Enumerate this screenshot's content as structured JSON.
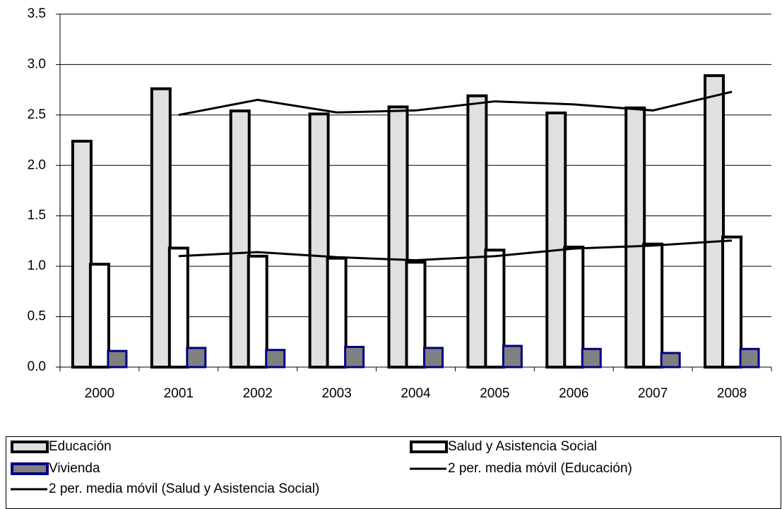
{
  "chart_data": {
    "type": "bar",
    "categories": [
      "2000",
      "2001",
      "2002",
      "2003",
      "2004",
      "2005",
      "2006",
      "2007",
      "2008"
    ],
    "series": [
      {
        "name": "Educación",
        "type": "bar",
        "color": "#e0e0e0",
        "edge": "#000000",
        "values": [
          2.24,
          2.76,
          2.54,
          2.51,
          2.58,
          2.69,
          2.52,
          2.57,
          2.89
        ]
      },
      {
        "name": "Salud y Asistencia Social",
        "type": "bar",
        "color": "#ffffff",
        "edge": "#000000",
        "values": [
          1.02,
          1.18,
          1.1,
          1.08,
          1.04,
          1.16,
          1.19,
          1.22,
          1.29
        ]
      },
      {
        "name": "Vivienda",
        "type": "bar",
        "color": "#808080",
        "edge": "#000080",
        "values": [
          0.16,
          0.19,
          0.17,
          0.2,
          0.19,
          0.21,
          0.18,
          0.14,
          0.18
        ]
      },
      {
        "name": "2 per. media móvil (Educación)",
        "type": "line",
        "color": "#000000",
        "values": [
          null,
          2.5,
          2.65,
          2.525,
          2.545,
          2.635,
          2.605,
          2.545,
          2.73
        ]
      },
      {
        "name": "2 per. media móvil (Salud y Asistencia Social)",
        "type": "line",
        "color": "#000000",
        "values": [
          null,
          1.1,
          1.14,
          1.09,
          1.06,
          1.1,
          1.175,
          1.205,
          1.255
        ]
      }
    ],
    "ylim": [
      0,
      3.5
    ],
    "yticks": [
      {
        "value": 0,
        "label": "0.0"
      },
      0.5,
      {
        "value": 1,
        "label": "1.0"
      },
      1.5,
      {
        "value": 2,
        "label": "2.0"
      },
      2.5,
      {
        "value": 3,
        "label": "3.0"
      },
      3.5
    ],
    "grid": true,
    "legend": "bottom"
  }
}
